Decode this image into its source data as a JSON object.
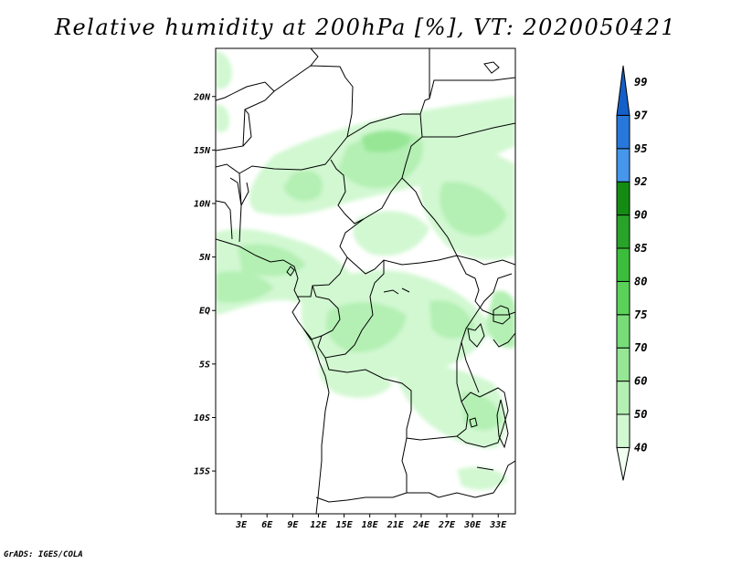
{
  "title": "Relative humidity at 200hPa [%], VT: 2020050421",
  "credit": "GrADS: IGES/COLA",
  "map": {
    "lon_range": [
      0,
      35
    ],
    "lat_range": [
      -19,
      24.5
    ],
    "lat_ticks": [
      {
        "value": 20,
        "label": "20N"
      },
      {
        "value": 15,
        "label": "15N"
      },
      {
        "value": 10,
        "label": "10N"
      },
      {
        "value": 5,
        "label": "5N"
      },
      {
        "value": 0,
        "label": "EQ"
      },
      {
        "value": -5,
        "label": "5S"
      },
      {
        "value": -10,
        "label": "10S"
      },
      {
        "value": -15,
        "label": "15S"
      }
    ],
    "lon_ticks": [
      {
        "value": 3,
        "label": "3E"
      },
      {
        "value": 6,
        "label": "6E"
      },
      {
        "value": 9,
        "label": "9E"
      },
      {
        "value": 12,
        "label": "12E"
      },
      {
        "value": 15,
        "label": "15E"
      },
      {
        "value": 18,
        "label": "18E"
      },
      {
        "value": 21,
        "label": "21E"
      },
      {
        "value": 24,
        "label": "24E"
      },
      {
        "value": 27,
        "label": "27E"
      },
      {
        "value": 30,
        "label": "30E"
      },
      {
        "value": 33,
        "label": "33E"
      }
    ]
  },
  "colorbar": {
    "levels": [
      "40",
      "50",
      "60",
      "70",
      "75",
      "80",
      "85",
      "90",
      "92",
      "95",
      "97",
      "99"
    ],
    "colors": [
      "#f0fff0",
      "#d2f8d2",
      "#b4f0b4",
      "#96e696",
      "#78dc78",
      "#5ad25a",
      "#3cbe3c",
      "#28a428",
      "#148c14",
      "#4696eb",
      "#2878dc",
      "#1460c8"
    ]
  }
}
